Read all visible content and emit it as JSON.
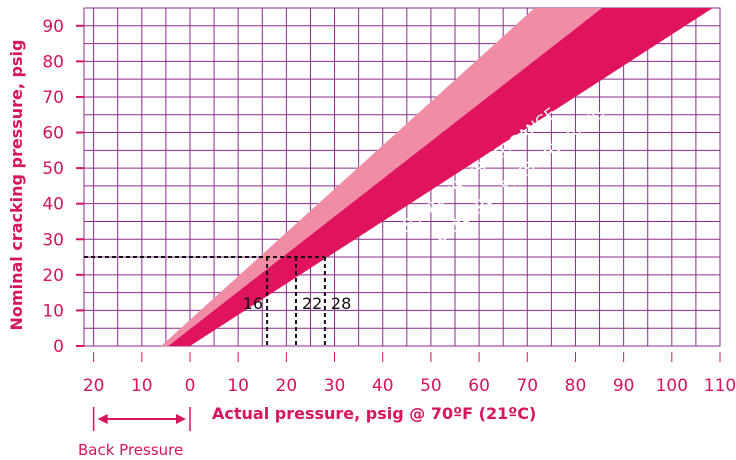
{
  "chart_data": {
    "type": "area",
    "xlabel": "Actual pressure, psig @ 70ºF (21ºC)",
    "ylabel": "Nominal cracking pressure, psig",
    "x_ticks": [
      -20,
      -10,
      0,
      10,
      20,
      30,
      40,
      50,
      60,
      70,
      80,
      90,
      100,
      110
    ],
    "x_tick_labels": [
      "20",
      "10",
      "0",
      "10",
      "20",
      "30",
      "40",
      "50",
      "60",
      "70",
      "80",
      "90",
      "100",
      "110"
    ],
    "y_ticks": [
      0,
      10,
      20,
      30,
      40,
      50,
      60,
      70,
      80,
      90
    ],
    "xlim": [
      -22,
      110
    ],
    "ylim": [
      0,
      95
    ],
    "grid": true,
    "bands": [
      {
        "name": "RESEAL PRESSURE RANGE",
        "color": "#f08ca4",
        "lower": [
          [
            -4.5,
            0
          ],
          [
            85.5,
            95
          ]
        ],
        "upper": [
          [
            -6,
            0
          ],
          [
            71.5,
            95
          ]
        ]
      },
      {
        "name": "CRACKING PRESSURE RANGE",
        "color": "#e0145e",
        "lower": [
          [
            0,
            0
          ],
          [
            108.5,
            95
          ]
        ],
        "upper": [
          [
            -4.5,
            0
          ],
          [
            85.5,
            95
          ]
        ]
      }
    ],
    "reference": {
      "y": 25,
      "x_values": [
        16,
        22,
        28
      ],
      "labels": [
        "16",
        "22",
        "28"
      ]
    },
    "back_pressure": {
      "label": "Back Pressure",
      "x_from": -20,
      "x_to": 0
    },
    "colors": {
      "grid": "#8e2a8e",
      "axis_text": "#d6145f",
      "reseal": "#f08ca4",
      "cracking": "#e0145e",
      "band_text": "#ffffff",
      "reference": "#111111"
    }
  }
}
